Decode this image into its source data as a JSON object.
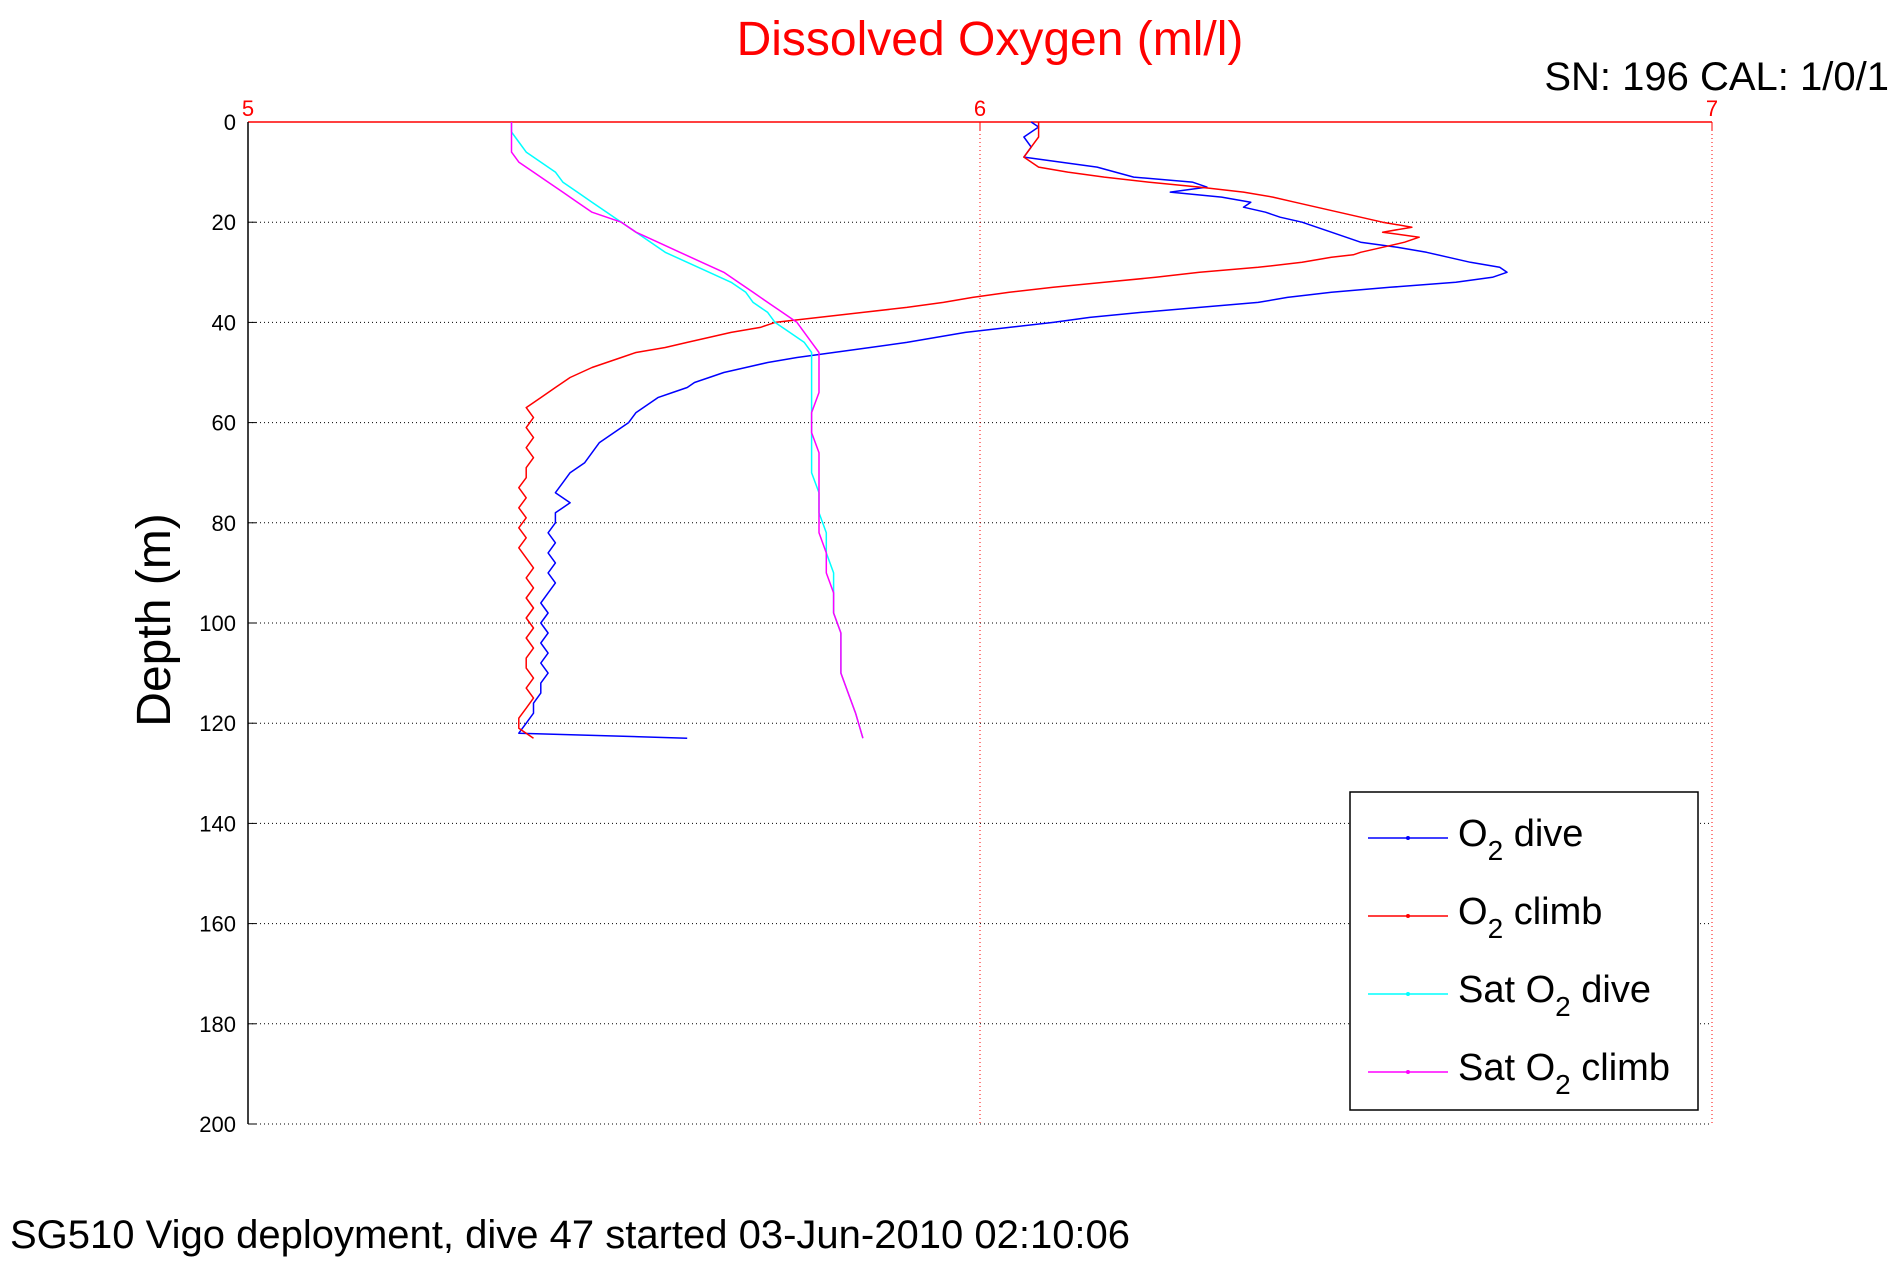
{
  "chart_data": {
    "type": "line",
    "title": "Dissolved Oxygen (ml/l)",
    "ylabel": "Depth (m)",
    "xlabel": "",
    "corner_label": "SN: 196  CAL: 1/0/1",
    "footer": "SG510 Vigo deployment, dive 47 started 03-Jun-2010 02:10:06",
    "xlim": [
      5,
      7
    ],
    "ylim": [
      0,
      200
    ],
    "y_reversed": true,
    "x_axis_position": "top",
    "x_ticks": [
      "5",
      "6",
      "7"
    ],
    "y_ticks": [
      "0",
      "20",
      "40",
      "60",
      "80",
      "100",
      "120",
      "140",
      "160",
      "180",
      "200"
    ],
    "grid": true,
    "legend_position": "bottom-right",
    "series": [
      {
        "name": "O2 dive",
        "legend_main": "O",
        "legend_sub": "2",
        "legend_rest": " dive",
        "color": "#0000ff",
        "points": [
          [
            6.07,
            0
          ],
          [
            6.08,
            1
          ],
          [
            6.06,
            3
          ],
          [
            6.07,
            5
          ],
          [
            6.06,
            7
          ],
          [
            6.11,
            8
          ],
          [
            6.16,
            9
          ],
          [
            6.21,
            11
          ],
          [
            6.29,
            12
          ],
          [
            6.31,
            13
          ],
          [
            6.26,
            14
          ],
          [
            6.33,
            15
          ],
          [
            6.37,
            16
          ],
          [
            6.36,
            17
          ],
          [
            6.39,
            18
          ],
          [
            6.41,
            19
          ],
          [
            6.44,
            20
          ],
          [
            6.46,
            21
          ],
          [
            6.48,
            22
          ],
          [
            6.5,
            23
          ],
          [
            6.52,
            24
          ],
          [
            6.57,
            25
          ],
          [
            6.61,
            26
          ],
          [
            6.64,
            27
          ],
          [
            6.67,
            28
          ],
          [
            6.71,
            29
          ],
          [
            6.72,
            30
          ],
          [
            6.7,
            31
          ],
          [
            6.65,
            32
          ],
          [
            6.56,
            33
          ],
          [
            6.48,
            34
          ],
          [
            6.42,
            35
          ],
          [
            6.38,
            36
          ],
          [
            6.3,
            37
          ],
          [
            6.22,
            38
          ],
          [
            6.15,
            39
          ],
          [
            6.1,
            40
          ],
          [
            6.04,
            41
          ],
          [
            5.98,
            42
          ],
          [
            5.94,
            43
          ],
          [
            5.9,
            44
          ],
          [
            5.85,
            45
          ],
          [
            5.8,
            46
          ],
          [
            5.75,
            47
          ],
          [
            5.71,
            48
          ],
          [
            5.68,
            49
          ],
          [
            5.65,
            50
          ],
          [
            5.63,
            51
          ],
          [
            5.61,
            52
          ],
          [
            5.6,
            53
          ],
          [
            5.58,
            54
          ],
          [
            5.56,
            55
          ],
          [
            5.55,
            56
          ],
          [
            5.54,
            57
          ],
          [
            5.53,
            58
          ],
          [
            5.52,
            60
          ],
          [
            5.5,
            62
          ],
          [
            5.48,
            64
          ],
          [
            5.47,
            66
          ],
          [
            5.46,
            68
          ],
          [
            5.44,
            70
          ],
          [
            5.43,
            72
          ],
          [
            5.42,
            74
          ],
          [
            5.44,
            76
          ],
          [
            5.42,
            78
          ],
          [
            5.42,
            80
          ],
          [
            5.41,
            82
          ],
          [
            5.42,
            84
          ],
          [
            5.41,
            86
          ],
          [
            5.42,
            88
          ],
          [
            5.41,
            90
          ],
          [
            5.42,
            92
          ],
          [
            5.41,
            94
          ],
          [
            5.4,
            96
          ],
          [
            5.41,
            98
          ],
          [
            5.4,
            100
          ],
          [
            5.41,
            102
          ],
          [
            5.4,
            104
          ],
          [
            5.41,
            106
          ],
          [
            5.4,
            108
          ],
          [
            5.41,
            110
          ],
          [
            5.4,
            112
          ],
          [
            5.4,
            114
          ],
          [
            5.39,
            116
          ],
          [
            5.39,
            118
          ],
          [
            5.38,
            120
          ],
          [
            5.37,
            122
          ],
          [
            5.6,
            123
          ]
        ]
      },
      {
        "name": "O2 climb",
        "legend_main": "O",
        "legend_sub": "2",
        "legend_rest": " climb",
        "color": "#ff0000",
        "points": [
          [
            5.39,
            123
          ],
          [
            5.37,
            121
          ],
          [
            5.37,
            119
          ],
          [
            5.38,
            117
          ],
          [
            5.39,
            115
          ],
          [
            5.38,
            113
          ],
          [
            5.39,
            111
          ],
          [
            5.38,
            109
          ],
          [
            5.38,
            107
          ],
          [
            5.39,
            105
          ],
          [
            5.38,
            103
          ],
          [
            5.39,
            101
          ],
          [
            5.38,
            99
          ],
          [
            5.39,
            97
          ],
          [
            5.38,
            95
          ],
          [
            5.39,
            93
          ],
          [
            5.38,
            91
          ],
          [
            5.39,
            89
          ],
          [
            5.38,
            87
          ],
          [
            5.37,
            85
          ],
          [
            5.38,
            83
          ],
          [
            5.37,
            81
          ],
          [
            5.38,
            79
          ],
          [
            5.37,
            77
          ],
          [
            5.38,
            75
          ],
          [
            5.37,
            73
          ],
          [
            5.38,
            71
          ],
          [
            5.38,
            69
          ],
          [
            5.39,
            67
          ],
          [
            5.38,
            65
          ],
          [
            5.39,
            63
          ],
          [
            5.38,
            61
          ],
          [
            5.39,
            59
          ],
          [
            5.38,
            57
          ],
          [
            5.4,
            55
          ],
          [
            5.42,
            53
          ],
          [
            5.44,
            51
          ],
          [
            5.47,
            49
          ],
          [
            5.51,
            47
          ],
          [
            5.53,
            46
          ],
          [
            5.57,
            45
          ],
          [
            5.6,
            44
          ],
          [
            5.63,
            43
          ],
          [
            5.66,
            42
          ],
          [
            5.7,
            41
          ],
          [
            5.72,
            40
          ],
          [
            5.78,
            39
          ],
          [
            5.84,
            38
          ],
          [
            5.9,
            37
          ],
          [
            5.95,
            36
          ],
          [
            5.99,
            35
          ],
          [
            6.04,
            34
          ],
          [
            6.1,
            33
          ],
          [
            6.17,
            32
          ],
          [
            6.24,
            31
          ],
          [
            6.3,
            30
          ],
          [
            6.38,
            29
          ],
          [
            6.44,
            28
          ],
          [
            6.48,
            27
          ],
          [
            6.51,
            26.5
          ],
          [
            6.52,
            26
          ],
          [
            6.55,
            25
          ],
          [
            6.58,
            24
          ],
          [
            6.6,
            23
          ],
          [
            6.55,
            22
          ],
          [
            6.59,
            21
          ],
          [
            6.55,
            20
          ],
          [
            6.52,
            19
          ],
          [
            6.49,
            18
          ],
          [
            6.46,
            17
          ],
          [
            6.43,
            16
          ],
          [
            6.4,
            15
          ],
          [
            6.36,
            14
          ],
          [
            6.3,
            13
          ],
          [
            6.23,
            12
          ],
          [
            6.17,
            11
          ],
          [
            6.12,
            10
          ],
          [
            6.08,
            9
          ],
          [
            6.06,
            7
          ],
          [
            6.07,
            5
          ],
          [
            6.08,
            3
          ],
          [
            6.08,
            1
          ],
          [
            6.08,
            0
          ]
        ]
      },
      {
        "name": "Sat O2 dive",
        "legend_main": "Sat O",
        "legend_sub": "2",
        "legend_rest": " dive",
        "color": "#00ffff",
        "points": [
          [
            5.36,
            0
          ],
          [
            5.36,
            2
          ],
          [
            5.37,
            4
          ],
          [
            5.38,
            6
          ],
          [
            5.4,
            8
          ],
          [
            5.42,
            10
          ],
          [
            5.43,
            12
          ],
          [
            5.45,
            14
          ],
          [
            5.47,
            16
          ],
          [
            5.49,
            18
          ],
          [
            5.51,
            20
          ],
          [
            5.53,
            22
          ],
          [
            5.55,
            24
          ],
          [
            5.57,
            26
          ],
          [
            5.6,
            28
          ],
          [
            5.63,
            30
          ],
          [
            5.66,
            32
          ],
          [
            5.68,
            34
          ],
          [
            5.69,
            36
          ],
          [
            5.71,
            38
          ],
          [
            5.72,
            40
          ],
          [
            5.74,
            42
          ],
          [
            5.76,
            44
          ],
          [
            5.77,
            46
          ],
          [
            5.77,
            50
          ],
          [
            5.77,
            54
          ],
          [
            5.77,
            58
          ],
          [
            5.77,
            62
          ],
          [
            5.77,
            66
          ],
          [
            5.77,
            70
          ],
          [
            5.78,
            74
          ],
          [
            5.78,
            78
          ],
          [
            5.79,
            82
          ],
          [
            5.79,
            86
          ],
          [
            5.8,
            90
          ],
          [
            5.8,
            94
          ],
          [
            5.8,
            98
          ],
          [
            5.81,
            102
          ],
          [
            5.81,
            106
          ],
          [
            5.81,
            110
          ],
          [
            5.82,
            114
          ],
          [
            5.83,
            118
          ],
          [
            5.84,
            123
          ]
        ]
      },
      {
        "name": "Sat O2 climb",
        "legend_main": "Sat O",
        "legend_sub": "2",
        "legend_rest": " climb",
        "color": "#ff00ff",
        "points": [
          [
            5.84,
            123
          ],
          [
            5.83,
            118
          ],
          [
            5.82,
            114
          ],
          [
            5.81,
            110
          ],
          [
            5.81,
            106
          ],
          [
            5.81,
            102
          ],
          [
            5.8,
            98
          ],
          [
            5.8,
            94
          ],
          [
            5.79,
            90
          ],
          [
            5.79,
            86
          ],
          [
            5.78,
            82
          ],
          [
            5.78,
            78
          ],
          [
            5.78,
            74
          ],
          [
            5.78,
            70
          ],
          [
            5.78,
            66
          ],
          [
            5.77,
            62
          ],
          [
            5.77,
            58
          ],
          [
            5.78,
            54
          ],
          [
            5.78,
            50
          ],
          [
            5.78,
            46
          ],
          [
            5.77,
            44
          ],
          [
            5.76,
            42
          ],
          [
            5.75,
            40
          ],
          [
            5.73,
            38
          ],
          [
            5.71,
            36
          ],
          [
            5.69,
            34
          ],
          [
            5.67,
            32
          ],
          [
            5.65,
            30
          ],
          [
            5.62,
            28
          ],
          [
            5.59,
            26
          ],
          [
            5.56,
            24
          ],
          [
            5.53,
            22
          ],
          [
            5.51,
            20
          ],
          [
            5.47,
            18
          ],
          [
            5.45,
            16
          ],
          [
            5.43,
            14
          ],
          [
            5.41,
            12
          ],
          [
            5.39,
            10
          ],
          [
            5.37,
            8
          ],
          [
            5.36,
            6
          ],
          [
            5.36,
            4
          ],
          [
            5.36,
            2
          ],
          [
            5.36,
            0
          ]
        ]
      }
    ]
  }
}
